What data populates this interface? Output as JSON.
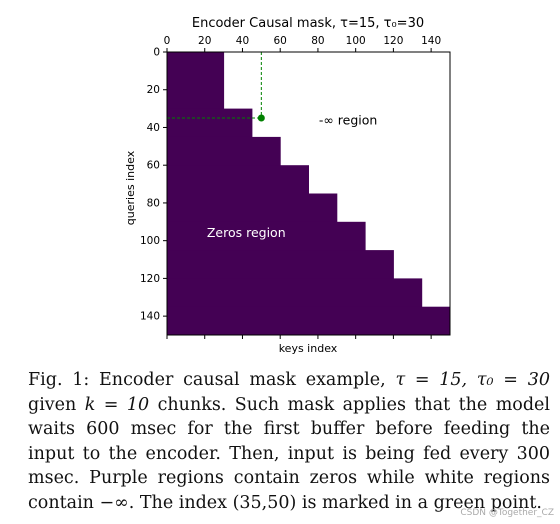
{
  "chart_data": {
    "type": "heatmap",
    "title": "Encoder Causal mask, τ=15, τ₀=30",
    "xlabel": "keys index",
    "ylabel": "queries index",
    "x_ticks": [
      0,
      20,
      40,
      60,
      80,
      100,
      120,
      140
    ],
    "y_ticks": [
      0,
      20,
      40,
      60,
      80,
      100,
      120,
      140
    ],
    "xlim": [
      0,
      150
    ],
    "ylim": [
      0,
      150
    ],
    "tau": 15,
    "tau0": 30,
    "k": 10,
    "staircase": [
      {
        "q_start": 0,
        "q_end": 30,
        "visible_keys": 30
      },
      {
        "q_start": 30,
        "q_end": 45,
        "visible_keys": 45
      },
      {
        "q_start": 45,
        "q_end": 60,
        "visible_keys": 60
      },
      {
        "q_start": 60,
        "q_end": 75,
        "visible_keys": 75
      },
      {
        "q_start": 75,
        "q_end": 90,
        "visible_keys": 90
      },
      {
        "q_start": 90,
        "q_end": 105,
        "visible_keys": 105
      },
      {
        "q_start": 105,
        "q_end": 120,
        "visible_keys": 120
      },
      {
        "q_start": 120,
        "q_end": 135,
        "visible_keys": 135
      },
      {
        "q_start": 135,
        "q_end": 150,
        "visible_keys": 150
      }
    ],
    "marked_point": {
      "query": 35,
      "key": 50
    },
    "zeros_color": "#440154",
    "inf_color": "#ffffff",
    "point_color": "#008000",
    "annotations": {
      "zeros_region": "Zeros region",
      "inf_region": "-∞ region"
    }
  },
  "caption": {
    "prefix": "Fig. 1: Encoder causal mask example,",
    "math_1": "τ = 15, τ₀ = 30",
    "mid_1": "given",
    "math_2": "k = 10",
    "rest": "chunks. Such mask applies that the model waits 600 msec for the first buffer before feeding the input to the encoder. Then, input is being fed every 300 msec. Purple regions contain zeros while white regions contain −∞. The index (35,50) is marked in a green point."
  },
  "watermark": "CSDN @Together_CZ"
}
